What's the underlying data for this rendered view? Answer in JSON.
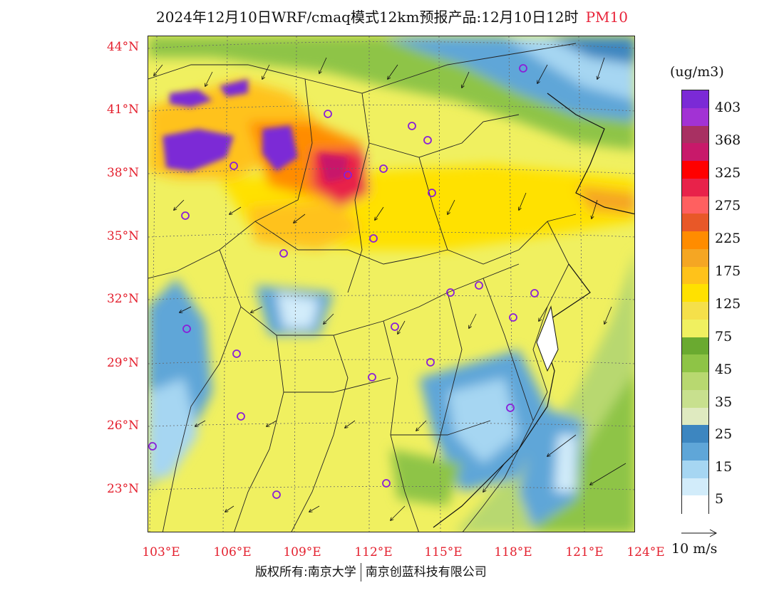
{
  "title": {
    "text": "2024年12月10日WRF/cmaq模式12km预报产品:12月10日12时",
    "pollutant": "PM10"
  },
  "colors": {
    "accent": "#e8243a",
    "axis_label": "#e4202e"
  },
  "map": {
    "lat_labels": [
      "44°N",
      "41°N",
      "38°N",
      "35°N",
      "32°N",
      "29°N",
      "26°N",
      "23°N"
    ],
    "lon_labels": [
      "103°E",
      "106°E",
      "109°E",
      "112°E",
      "115°E",
      "118°E",
      "121°E",
      "124°E"
    ]
  },
  "colorbar": {
    "unit": "(ug/m3)",
    "labels": [
      "403",
      "368",
      "325",
      "275",
      "225",
      "175",
      "125",
      "75",
      "45",
      "35",
      "25",
      "15",
      "5"
    ],
    "colors": [
      "#7b2ad6",
      "#a232d4",
      "#a83062",
      "#c8196a",
      "#ff0000",
      "#e8224a",
      "#ff6060",
      "#e85828",
      "#ff8c00",
      "#f5a623",
      "#ffc21a",
      "#ffe100",
      "#f5e04a",
      "#f0f060",
      "#6aaa30",
      "#8ec446",
      "#b8d870",
      "#c8e08e",
      "#dfeac0",
      "#3d86c0",
      "#5fa6d8",
      "#a6d6f2",
      "#d2ecfa",
      "#ffffff"
    ]
  },
  "vector_reference": {
    "label": "10 m/s"
  },
  "footer": {
    "left": "版权所有:南京大学",
    "right": "南京创蓝科技有限公司"
  }
}
